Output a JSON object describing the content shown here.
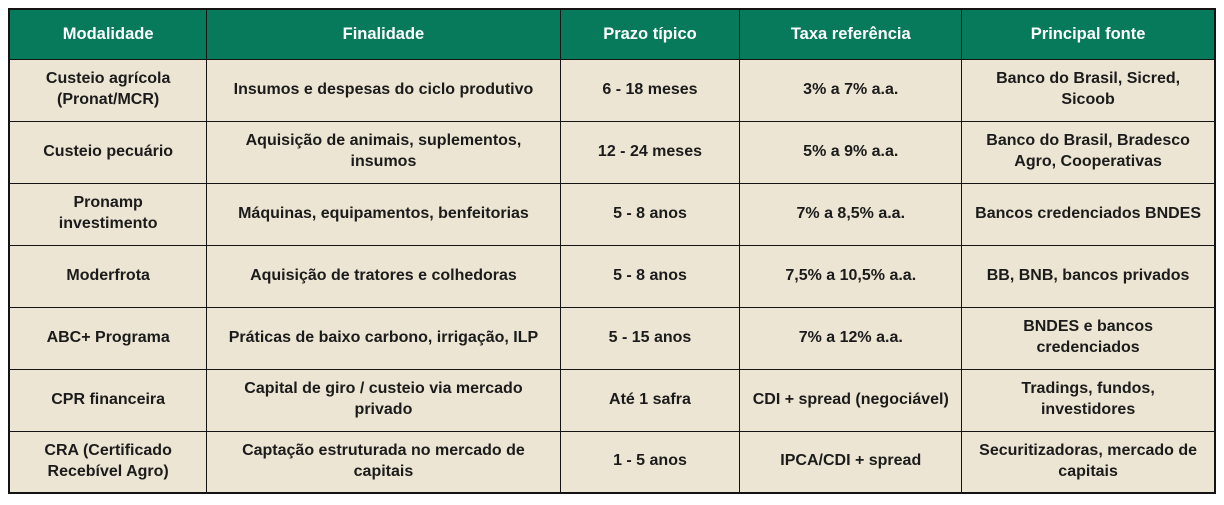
{
  "chart_data": {
    "type": "table",
    "columns": [
      "Modalidade",
      "Finalidade",
      "Prazo típico",
      "Taxa referência",
      "Principal fonte"
    ],
    "rows": [
      [
        "Custeio agrícola (Pronat/MCR)",
        "Insumos e despesas do ciclo produtivo",
        "6 - 18 meses",
        "3% a 7% a.a.",
        "Banco do Brasil, Sicred, Sicoob"
      ],
      [
        "Custeio pecuário",
        "Aquisição de animais, suplementos, insumos",
        "12 - 24 meses",
        "5% a 9% a.a.",
        "Banco do Brasil, Bradesco Agro, Cooperativas"
      ],
      [
        "Pronamp investimento",
        "Máquinas, equipamentos, benfeitorias",
        "5 - 8 anos",
        "7% a 8,5% a.a.",
        "Bancos credenciados BNDES"
      ],
      [
        "Moderfrota",
        "Aquisição de tratores e colhedoras",
        "5 - 8 anos",
        "7,5% a 10,5% a.a.",
        "BB, BNB, bancos privados"
      ],
      [
        "ABC+ Programa",
        "Práticas de baixo carbono, irrigação, ILP",
        "5 - 15 anos",
        "7% a 12% a.a.",
        "BNDES e bancos credenciados"
      ],
      [
        "CPR financeira",
        "Capital de giro / custeio via mercado privado",
        "Até 1 safra",
        "CDI + spread (negociável)",
        "Tradings, fundos, investidores"
      ],
      [
        "CRA (Certificado Recebível Agro)",
        "Captação estruturada no mercado de capitais",
        "1 - 5 anos",
        "IPCA/CDI + spread",
        "Securitizadoras, mercado de capitais"
      ]
    ],
    "title": "",
    "legend": null
  },
  "colors": {
    "header_bg": "#077a5c",
    "header_text": "#ffffff",
    "row_bg": "#ece5d3",
    "body_text": "#1b1b1b",
    "border": "#141414",
    "page_bg": "#ffffff"
  }
}
